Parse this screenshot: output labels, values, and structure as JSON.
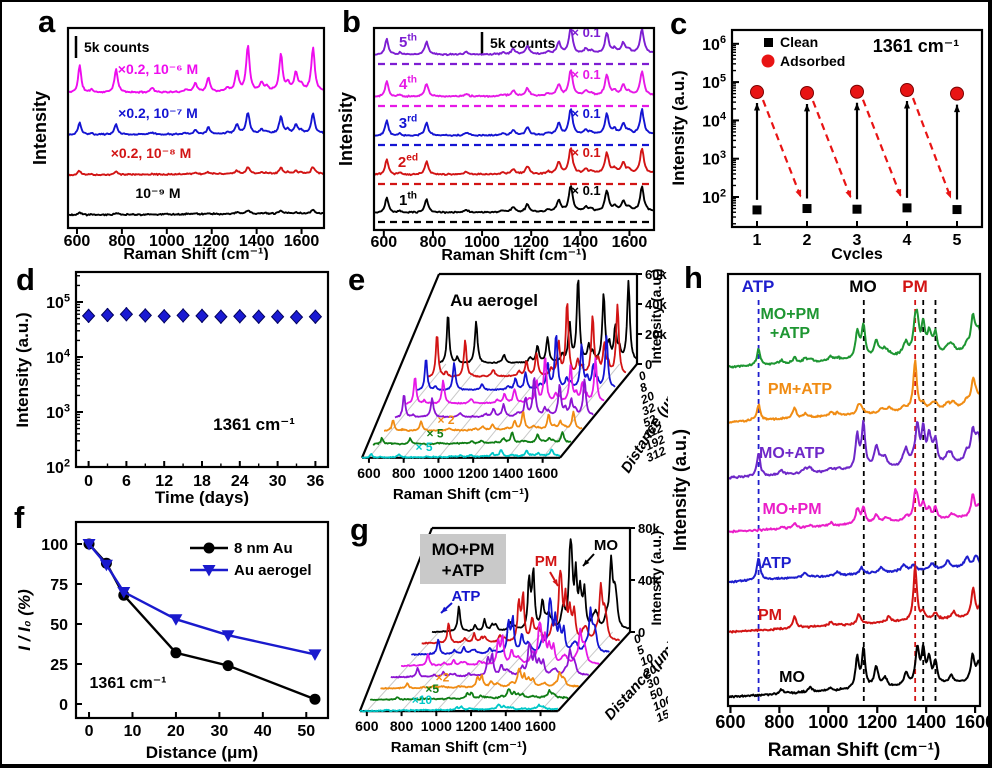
{
  "panel_letters": [
    "a",
    "b",
    "c",
    "d",
    "e",
    "f",
    "g",
    "h"
  ],
  "peak_library": {
    "r6g": [
      [
        612,
        0.6,
        8
      ],
      [
        665,
        0.07,
        8
      ],
      [
        774,
        0.5,
        9
      ],
      [
        935,
        0.1,
        10
      ],
      [
        1085,
        0.06,
        10
      ],
      [
        1127,
        0.2,
        9
      ],
      [
        1185,
        0.3,
        9
      ],
      [
        1270,
        0.08,
        10
      ],
      [
        1312,
        0.45,
        9
      ],
      [
        1361,
        1,
        9
      ],
      [
        1422,
        0.18,
        9
      ],
      [
        1445,
        0.1,
        9
      ],
      [
        1508,
        0.8,
        9
      ],
      [
        1540,
        0.18,
        9
      ],
      [
        1575,
        0.4,
        9
      ],
      [
        1598,
        0.14,
        9
      ],
      [
        1651,
        0.95,
        9
      ]
    ],
    "mo": [
      [
        808,
        0.07,
        9
      ],
      [
        925,
        0.07,
        10
      ],
      [
        1008,
        0.05,
        9
      ],
      [
        1118,
        0.5,
        8
      ],
      [
        1144,
        0.62,
        8
      ],
      [
        1196,
        0.32,
        10
      ],
      [
        1232,
        0.14,
        10
      ],
      [
        1318,
        0.2,
        10
      ],
      [
        1364,
        0.58,
        9
      ],
      [
        1388,
        0.52,
        8
      ],
      [
        1412,
        0.4,
        9
      ],
      [
        1438,
        0.34,
        8
      ],
      [
        1502,
        0.12,
        10
      ],
      [
        1590,
        0.42,
        9
      ],
      [
        1614,
        0.3,
        9
      ]
    ],
    "pm": [
      [
        862,
        0.22,
        8
      ],
      [
        1012,
        0.08,
        9
      ],
      [
        1125,
        0.18,
        9
      ],
      [
        1248,
        0.1,
        10
      ],
      [
        1355,
        1,
        8
      ],
      [
        1388,
        0.14,
        9
      ],
      [
        1438,
        0.12,
        9
      ],
      [
        1512,
        0.12,
        10
      ],
      [
        1592,
        0.52,
        9
      ],
      [
        1624,
        0.24,
        9
      ]
    ],
    "atp": [
      [
        715,
        0.6,
        8
      ],
      [
        905,
        0.12,
        10
      ],
      [
        1038,
        0.09,
        10
      ],
      [
        1136,
        0.16,
        10
      ],
      [
        1216,
        0.14,
        11
      ],
      [
        1308,
        0.16,
        12
      ],
      [
        1348,
        0.14,
        11
      ],
      [
        1424,
        0.16,
        11
      ],
      [
        1488,
        0.2,
        12
      ],
      [
        1566,
        0.26,
        12
      ],
      [
        1604,
        0.3,
        11
      ]
    ]
  },
  "chart_data": [
    {
      "id": "a",
      "type": "line",
      "kind": "sers-concentration-spectra",
      "letter": "a",
      "xlabel": "Raman Shift (cm⁻¹)",
      "ylabel": "Intensity",
      "xticks": [
        600,
        800,
        1000,
        1200,
        1400,
        1600
      ],
      "xrange": [
        560,
        1700
      ],
      "scalebar_label": "5k counts",
      "peaks_ref": "r6g",
      "grid": false,
      "series": [
        {
          "label": "×0.2, 10⁻⁶ M",
          "color": "#ee0cee",
          "peak_height_counts": 10500
        },
        {
          "label": "×0.2, 10⁻⁷ M",
          "color": "#1414d2",
          "peak_height_counts": 4800
        },
        {
          "label": "×0.2, 10⁻⁸ M",
          "color": "#d21414",
          "peak_height_counts": 1600
        },
        {
          "label": "10⁻⁹ M",
          "color": "#000000",
          "peak_height_counts": 900
        }
      ]
    },
    {
      "id": "b",
      "type": "line",
      "kind": "sers-cycle-spectra",
      "letter": "b",
      "xlabel": "Raman Shift (cm⁻¹)",
      "ylabel": "Intensity",
      "xticks": [
        600,
        800,
        1000,
        1200,
        1400,
        1600
      ],
      "xrange": [
        560,
        1700
      ],
      "scalebar_label": "5k counts",
      "peaks_ref": "r6g",
      "multiplier_label": "× 0.1",
      "series": [
        {
          "label": "5th",
          "color": "#7d1ed2"
        },
        {
          "label": "4th",
          "color": "#e619e6"
        },
        {
          "label": "3rd",
          "color": "#1414d2"
        },
        {
          "label": "2ed",
          "color": "#d21414"
        },
        {
          "label": "1th",
          "color": "#000000"
        }
      ]
    },
    {
      "id": "c",
      "type": "scatter",
      "letter": "c",
      "xlabel": "Cycles",
      "ylabel": "Intensity (a.u.)",
      "annotation": "1361 cm⁻¹",
      "yscale": "log",
      "xticks": [
        1,
        2,
        3,
        4,
        5
      ],
      "yticks_exponents": [
        2,
        3,
        4,
        5,
        6
      ],
      "legend": [
        {
          "label": "Clean",
          "marker": "square",
          "color": "#000000"
        },
        {
          "label": "Adsorbed",
          "marker": "circle",
          "color": "#e81414"
        }
      ],
      "x": [
        1,
        2,
        3,
        4,
        5
      ],
      "series": [
        {
          "name": "Adsorbed",
          "values": [
            55000,
            52000,
            56000,
            62000,
            50000
          ]
        },
        {
          "name": "Clean",
          "values": [
            46,
            50,
            48,
            52,
            47
          ]
        }
      ]
    },
    {
      "id": "d",
      "type": "scatter",
      "letter": "d",
      "xlabel": "Time (days)",
      "ylabel": "Intensity (a.u.)",
      "annotation": "1361 cm⁻¹",
      "yscale": "log",
      "color": "#1a1ad2",
      "xticks": [
        0,
        6,
        12,
        18,
        24,
        30,
        36
      ],
      "yticks_exponents": [
        2,
        3,
        4,
        5
      ],
      "x": [
        0,
        3,
        6,
        9,
        12,
        15,
        18,
        21,
        24,
        27,
        30,
        33,
        36
      ],
      "y": [
        56000,
        58000,
        60000,
        57000,
        55000,
        57000,
        56000,
        54000,
        55000,
        54000,
        54000,
        53000,
        54000
      ]
    },
    {
      "id": "e",
      "type": "waterfall",
      "letter": "e",
      "title": "Au aerogel",
      "xlabel": "Raman Shift (cm⁻¹)",
      "ylabel": "Distance (μm)",
      "zlabel": "Intensity (a.u.)",
      "xticks": [
        600,
        800,
        1000,
        1200,
        1400,
        1600
      ],
      "xrange": [
        560,
        1700
      ],
      "zticks": [
        "0",
        "20k",
        "40k",
        "60k"
      ],
      "peaks_ref": "r6g",
      "distances": [
        0,
        8,
        20,
        32,
        52,
        112,
        192,
        312
      ],
      "colors": [
        "#000000",
        "#d21414",
        "#1414d2",
        "#e619e6",
        "#8c14d2",
        "#f08c14",
        "#0f7d14",
        "#00c8c8"
      ],
      "peak_heights_k": [
        55,
        48,
        36,
        30,
        25,
        12,
        7,
        4.5
      ],
      "multipliers": [
        "",
        "",
        "",
        "",
        "",
        "× 2",
        "× 5",
        "× 5"
      ]
    },
    {
      "id": "f",
      "type": "line",
      "letter": "f",
      "xlabel": "Distance (μm)",
      "ylabel": "I / I₀ (%)",
      "annotation": "1361 cm⁻¹",
      "xticks": [
        0,
        10,
        20,
        30,
        40,
        50
      ],
      "yticks": [
        0,
        25,
        50,
        75,
        100
      ],
      "x": [
        0,
        4,
        8,
        20,
        32,
        52
      ],
      "series": [
        {
          "name": "8 nm Au",
          "color": "#000000",
          "marker": "circle",
          "values": [
            100,
            88,
            68,
            32,
            24,
            3
          ]
        },
        {
          "name": "Au aerogel",
          "color": "#1a1acd",
          "marker": "triangle-down",
          "values": [
            100,
            87,
            70,
            53,
            43,
            31
          ]
        }
      ]
    },
    {
      "id": "g",
      "type": "waterfall",
      "letter": "g",
      "title_lines": [
        "MO+PM",
        "+ATP"
      ],
      "xlabel": "Raman Shift (cm⁻¹)",
      "ylabel": "Distance (μm)",
      "zlabel": "Intensity (a.u.)",
      "xticks": [
        600,
        800,
        1000,
        1200,
        1400,
        1600
      ],
      "xrange": [
        560,
        1700
      ],
      "zticks": [
        "0",
        "40k",
        "80k"
      ],
      "mixture": [
        [
          "mo",
          0.8
        ],
        [
          "pm",
          0.5
        ],
        [
          "atp",
          0.4
        ]
      ],
      "annotations": [
        {
          "label": "ATP",
          "color": "#1414cd"
        },
        {
          "label": "PM",
          "color": "#d21414"
        },
        {
          "label": "MO",
          "color": "#000000"
        }
      ],
      "distances": [
        0,
        5,
        10,
        20,
        30,
        50,
        100,
        150
      ],
      "colors": [
        "#000000",
        "#d21414",
        "#1414d2",
        "#e619e6",
        "#8c14d2",
        "#f08c14",
        "#0f7d14",
        "#00c8c8"
      ],
      "peak_heights_k": [
        70,
        55,
        42,
        33,
        25,
        14,
        7,
        4
      ],
      "multipliers": [
        "",
        "",
        "",
        "",
        "",
        "×2",
        "×5",
        "×10"
      ]
    },
    {
      "id": "h",
      "type": "line",
      "kind": "stacked-spectra",
      "letter": "h",
      "xlabel": "Raman Shift (cm⁻¹)",
      "ylabel": "Intensity (a.u.)",
      "xticks": [
        600,
        800,
        1000,
        1200,
        1400,
        1600
      ],
      "xrange": [
        590,
        1620
      ],
      "top_labels": [
        {
          "label": "ATP",
          "color": "#1e1ecd"
        },
        {
          "label": "MO",
          "color": "#000000"
        },
        {
          "label": "PM",
          "color": "#d21414"
        }
      ],
      "dashed_lines": [
        {
          "x": 715,
          "color": "#1e1ecd"
        },
        {
          "x": 1145,
          "color": "#000000"
        },
        {
          "x": 1355,
          "color": "#d21414"
        },
        {
          "x": 1388,
          "color": "#000000"
        },
        {
          "x": 1438,
          "color": "#000000"
        }
      ],
      "series": [
        {
          "label_lines": [
            "MO+PM",
            "+ATP"
          ],
          "color": "#1e9632",
          "mix": [
            [
              "mo",
              0.8
            ],
            [
              "pm",
              0.4
            ],
            [
              "atp",
              0.45
            ]
          ]
        },
        {
          "label_lines": [
            "PM+ATP"
          ],
          "color": "#f08c14",
          "mix": [
            [
              "pm",
              0.8
            ],
            [
              "atp",
              0.45
            ]
          ]
        },
        {
          "label_lines": [
            "MO+ATP"
          ],
          "color": "#6e28c8",
          "mix": [
            [
              "mo",
              0.85
            ],
            [
              "atp",
              0.5
            ]
          ]
        },
        {
          "label_lines": [
            "MO+PM"
          ],
          "color": "#ea1ec8",
          "mix": [
            [
              "mo",
              0.55
            ],
            [
              "pm",
              0.5
            ]
          ]
        },
        {
          "label_lines": [
            "ATP"
          ],
          "color": "#1e1ecd",
          "mix": [
            [
              "atp",
              1
            ]
          ]
        },
        {
          "label_lines": [
            "PM"
          ],
          "color": "#d21414",
          "mix": [
            [
              "pm",
              1
            ]
          ]
        },
        {
          "label_lines": [
            "MO"
          ],
          "color": "#000000",
          "mix": [
            [
              "mo",
              1
            ]
          ]
        }
      ]
    }
  ]
}
